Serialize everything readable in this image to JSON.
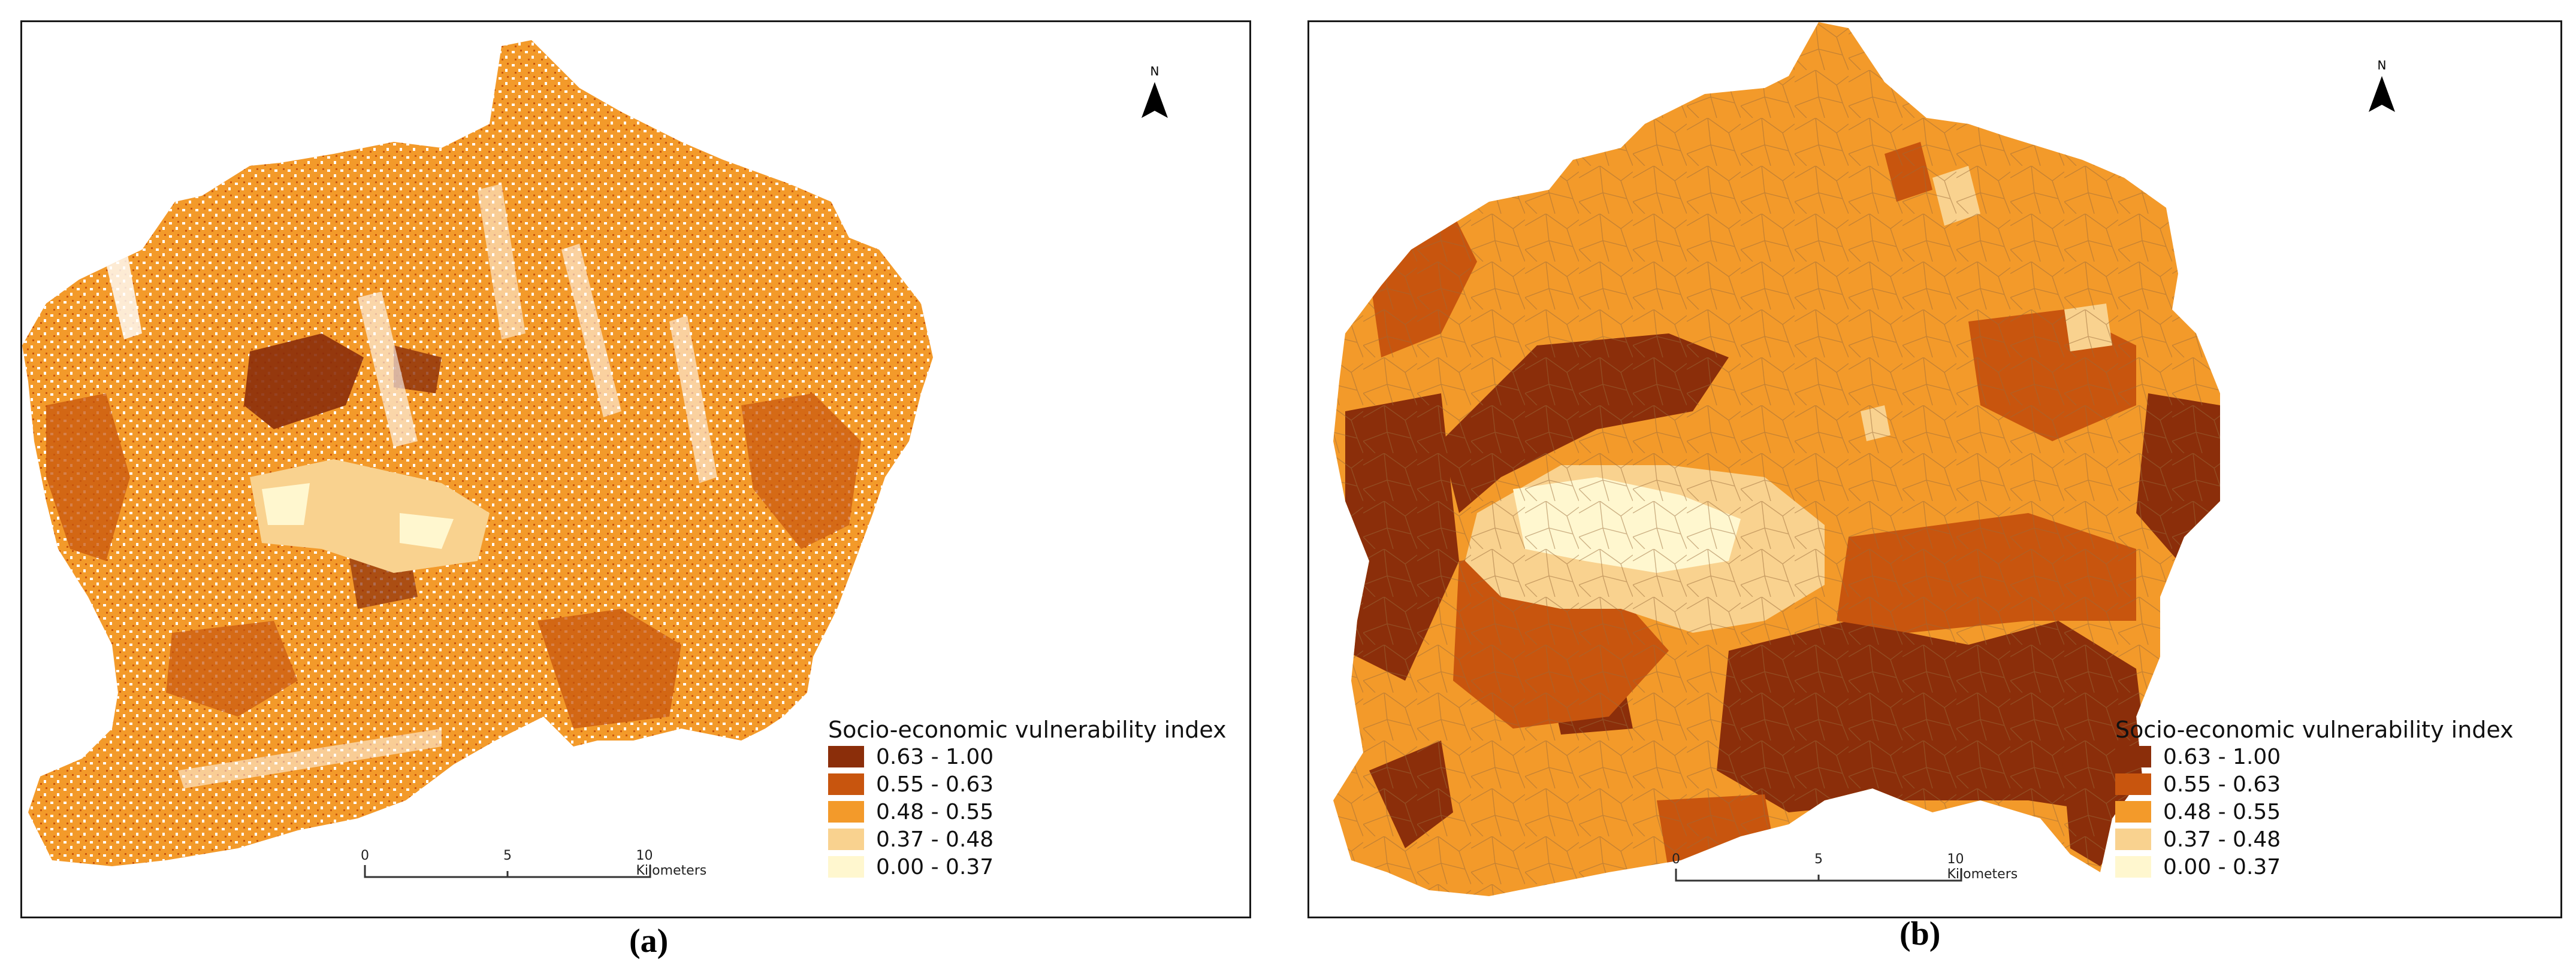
{
  "colors": {
    "c1": "#8b2e0a",
    "c2": "#c8550e",
    "c3": "#f39a2a",
    "c4": "#f9d28f",
    "c5": "#fff7cf"
  },
  "panel_a": {
    "caption": "(a)",
    "legend": {
      "title": "Socio-economic vulnerability index",
      "items": [
        {
          "label": "0.63 - 1.00",
          "color": "#8b2e0a"
        },
        {
          "label": "0.55 - 0.63",
          "color": "#c8550e"
        },
        {
          "label": "0.48 - 0.55",
          "color": "#f39a2a"
        },
        {
          "label": "0.37 - 0.48",
          "color": "#f9d28f"
        },
        {
          "label": "0.00 - 0.37",
          "color": "#fff7cf"
        }
      ]
    },
    "scale": {
      "ticks": [
        "0",
        "5",
        "10 Kilometers"
      ]
    },
    "north_label": "N"
  },
  "panel_b": {
    "caption": "(b)",
    "legend": {
      "title": "Socio-economic vulnerability index",
      "items": [
        {
          "label": "0.63 - 1.00",
          "color": "#8b2e0a"
        },
        {
          "label": "0.55 - 0.63",
          "color": "#c8550e"
        },
        {
          "label": "0.48 - 0.55",
          "color": "#f39a2a"
        },
        {
          "label": "0.37 - 0.48",
          "color": "#f9d28f"
        },
        {
          "label": "0.00 - 0.37",
          "color": "#fff7cf"
        }
      ]
    },
    "scale": {
      "ticks": [
        "0",
        "5",
        "10 Kilometers"
      ]
    },
    "north_label": "N"
  }
}
